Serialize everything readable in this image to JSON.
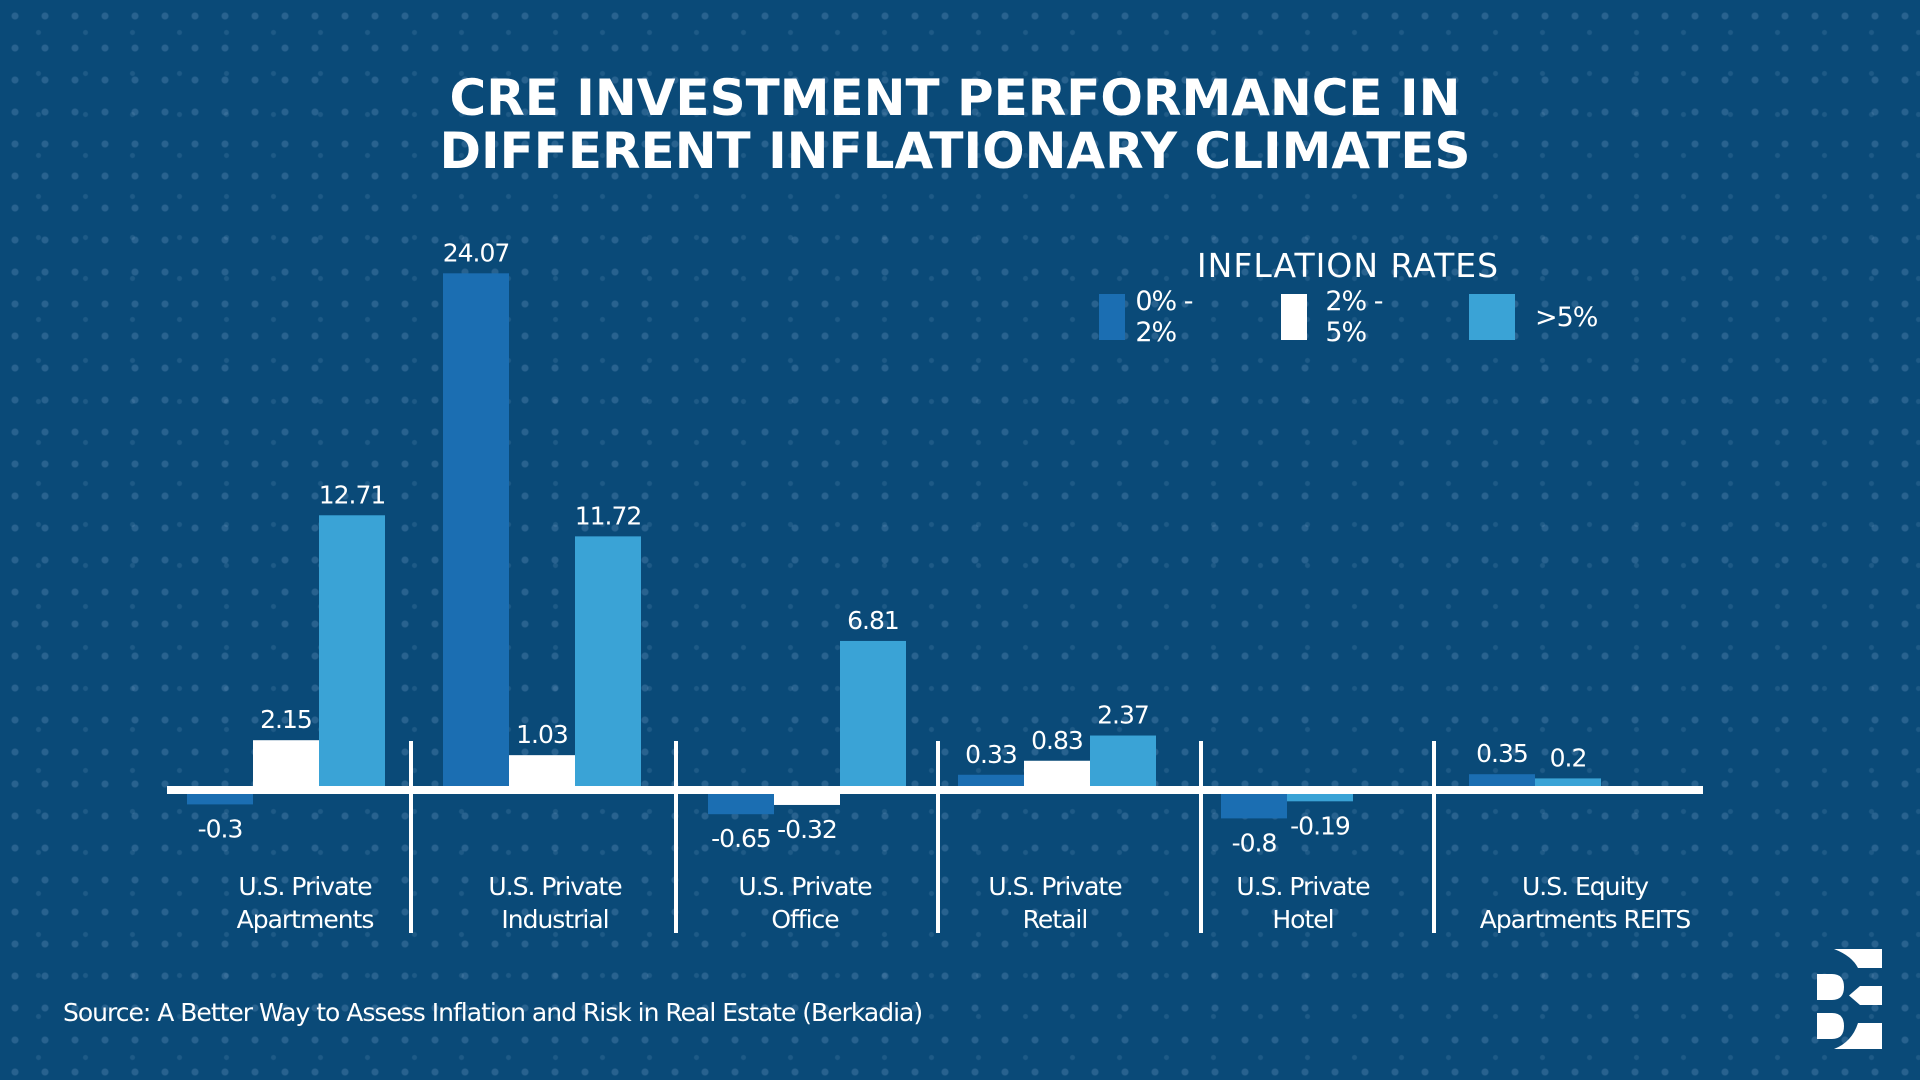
{
  "colors": {
    "background": "#0a4a78",
    "series_0_2": "#1b6eb2",
    "series_2_5": "#ffffff",
    "series_gt5": "#3aa3d6",
    "axis": "#ffffff",
    "text": "#ffffff"
  },
  "chart_data": {
    "type": "bar",
    "title": "CRE INVESTMENT PERFORMANCE IN DIFFERENT INFLATIONARY CLIMATES",
    "title_lines": [
      "CRE INVESTMENT PERFORMANCE IN",
      "DIFFERENT INFLATIONARY CLIMATES"
    ],
    "xlabel": "",
    "ylabel": "",
    "grid": false,
    "legend_title": "INFLATION RATES",
    "legend_position": "top-right",
    "categories": [
      "U.S. Private Apartments",
      "U.S. Private Industrial",
      "U.S. Private Office",
      "U.S. Private Retail",
      "U.S. Private Hotel",
      "U.S. Equity Apartments REITS"
    ],
    "category_lines": [
      [
        "U.S. Private",
        "Apartments"
      ],
      [
        "U.S. Private",
        "Industrial"
      ],
      [
        "U.S. Private",
        "Office"
      ],
      [
        "U.S. Private",
        "Retail"
      ],
      [
        "U.S. Private",
        "Hotel"
      ],
      [
        "U.S. Equity",
        "Apartments REITS"
      ]
    ],
    "series": [
      {
        "name": "0% - 2%",
        "color": "#1b6eb2",
        "values": [
          -0.3,
          24.07,
          -0.65,
          0.33,
          -0.8,
          0.35
        ]
      },
      {
        "name": "2% - 5%",
        "color": "#ffffff",
        "values": [
          2.15,
          1.03,
          -0.32,
          0.83,
          null,
          null
        ]
      },
      {
        "name": ">5%",
        "color": "#3aa3d6",
        "values": [
          12.71,
          11.72,
          6.81,
          2.37,
          -0.19,
          0.2
        ]
      }
    ],
    "data_labels": [
      [
        "-0.3",
        "2.15",
        "12.71"
      ],
      [
        "24.07",
        "1.03",
        "11.72"
      ],
      [
        "-0.65",
        "-0.32",
        "6.81"
      ],
      [
        "0.33",
        "0.83",
        "2.37"
      ],
      [
        "-0.8",
        null,
        "-0.19"
      ],
      [
        "0.35",
        null,
        "0.2"
      ]
    ],
    "ylim": [
      -1,
      25
    ]
  },
  "legend": {
    "title": "INFLATION RATES",
    "items": [
      {
        "label": "0% - 2%",
        "color": "#1b6eb2"
      },
      {
        "label": "2% - 5%",
        "color": "#ffffff"
      },
      {
        "label": ">5%",
        "color": "#3aa3d6"
      }
    ]
  },
  "source": "Source: A Better Way to Assess Inflation and Risk in Real Estate (Berkadia)",
  "logo": {
    "icon": "berkadia-logo-icon"
  }
}
